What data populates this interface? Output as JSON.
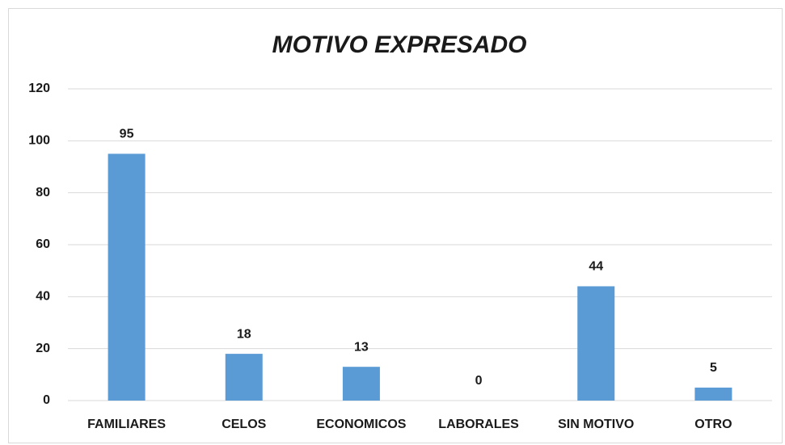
{
  "chart_data": {
    "type": "bar",
    "title": "MOTIVO EXPRESADO",
    "categories": [
      "FAMILIARES",
      "CELOS",
      "ECONOMICOS",
      "LABORALES",
      "SIN MOTIVO",
      "OTRO"
    ],
    "values": [
      95,
      18,
      13,
      0,
      44,
      5
    ],
    "color": "#5b9bd5",
    "ylim": [
      0,
      120
    ],
    "yticks": [
      0,
      20,
      40,
      60,
      80,
      100,
      120
    ],
    "grid": true
  }
}
